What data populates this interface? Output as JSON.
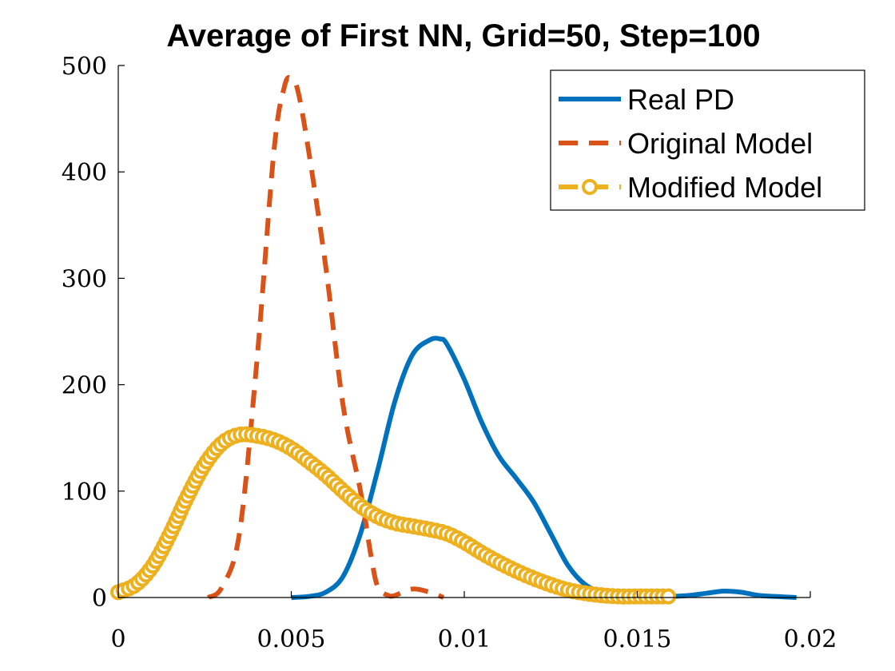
{
  "chart_data": {
    "type": "line",
    "title": "Average of First NN, Grid=50, Step=100",
    "xlabel": "",
    "ylabel": "",
    "xlim": [
      0,
      0.02
    ],
    "ylim": [
      0,
      500
    ],
    "xticks": [
      0,
      0.005,
      0.01,
      0.015,
      0.02
    ],
    "xtick_labels": [
      "0",
      "0.005",
      "0.01",
      "0.015",
      "0.02"
    ],
    "yticks": [
      0,
      100,
      200,
      300,
      400,
      500
    ],
    "ytick_labels": [
      "0",
      "100",
      "200",
      "300",
      "400",
      "500"
    ],
    "grid": false,
    "legend_position": "top-right",
    "series": [
      {
        "name": "Real PD",
        "color": "#0072BD",
        "style": "solid",
        "x": [
          0.005,
          0.0055,
          0.006,
          0.0065,
          0.007,
          0.0075,
          0.008,
          0.0085,
          0.009,
          0.0093,
          0.0095,
          0.01,
          0.0105,
          0.011,
          0.0115,
          0.012,
          0.0125,
          0.013,
          0.0135,
          0.014,
          0.0145,
          0.015,
          0.0155,
          0.016,
          0.0165,
          0.017,
          0.0175,
          0.018,
          0.0185,
          0.019,
          0.0196
        ],
        "y": [
          0,
          1,
          5,
          20,
          60,
          120,
          185,
          228,
          242,
          243,
          238,
          205,
          165,
          133,
          112,
          90,
          60,
          30,
          12,
          5,
          2,
          1,
          0.5,
          1,
          2,
          4,
          6,
          5,
          2,
          1,
          0
        ]
      },
      {
        "name": "Original Model",
        "color": "#D95319",
        "style": "dashed",
        "x": [
          0.0026,
          0.003,
          0.0035,
          0.004,
          0.0045,
          0.0048,
          0.005,
          0.0052,
          0.0055,
          0.006,
          0.0065,
          0.007,
          0.0073,
          0.0075,
          0.0078,
          0.008,
          0.0085,
          0.009,
          0.0094
        ],
        "y": [
          0,
          10,
          60,
          220,
          420,
          480,
          488,
          475,
          420,
          310,
          180,
          100,
          40,
          10,
          2,
          2,
          8,
          5,
          0
        ]
      },
      {
        "name": "Modified Model",
        "color": "#EDB120",
        "style": "dashed-circle-markers",
        "x": [
          0,
          0.0005,
          0.001,
          0.0015,
          0.002,
          0.0025,
          0.003,
          0.0035,
          0.004,
          0.0045,
          0.005,
          0.0055,
          0.006,
          0.0065,
          0.007,
          0.0075,
          0.008,
          0.0085,
          0.009,
          0.0095,
          0.01,
          0.0105,
          0.011,
          0.0115,
          0.012,
          0.0125,
          0.013,
          0.0135,
          0.014,
          0.0145,
          0.015,
          0.0155,
          0.016
        ],
        "y": [
          5,
          12,
          30,
          60,
          95,
          125,
          145,
          153,
          152,
          148,
          140,
          128,
          115,
          100,
          86,
          76,
          70,
          67,
          64,
          60,
          52,
          42,
          33,
          25,
          18,
          12,
          7,
          4,
          2,
          1,
          1,
          1,
          1
        ]
      }
    ]
  }
}
